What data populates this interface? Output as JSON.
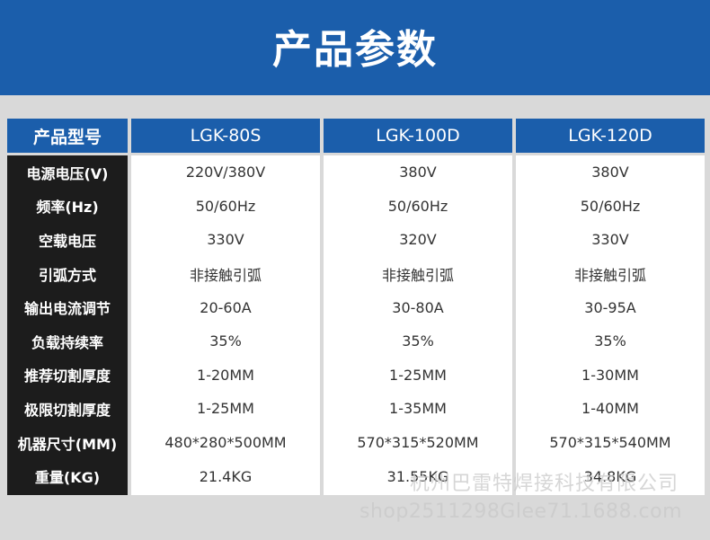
{
  "banner": {
    "title": "产品参数"
  },
  "table": {
    "header": [
      "产品型号",
      "LGK-80S",
      "LGK-100D",
      "LGK-120D"
    ],
    "rows": [
      {
        "label": "电源电压(V)",
        "values": [
          "220V/380V",
          "380V",
          "380V"
        ]
      },
      {
        "label": "频率(Hz)",
        "values": [
          "50/60Hz",
          "50/60Hz",
          "50/60Hz"
        ]
      },
      {
        "label": "空载电压",
        "values": [
          "330V",
          "320V",
          "330V"
        ]
      },
      {
        "label": "引弧方式",
        "values": [
          "非接触引弧",
          "非接触引弧",
          "非接触引弧"
        ]
      },
      {
        "label": "输出电流调节",
        "values": [
          "20-60A",
          "30-80A",
          "30-95A"
        ]
      },
      {
        "label": "负载持续率",
        "values": [
          "35%",
          "35%",
          "35%"
        ]
      },
      {
        "label": "推荐切割厚度",
        "values": [
          "1-20MM",
          "1-25MM",
          "1-30MM"
        ]
      },
      {
        "label": "极限切割厚度",
        "values": [
          "1-25MM",
          "1-35MM",
          "1-40MM"
        ]
      },
      {
        "label": "机器尺寸(MM)",
        "values": [
          "480*280*500MM",
          "570*315*520MM",
          "570*315*540MM"
        ]
      },
      {
        "label": "重量(KG)",
        "values": [
          "21.4KG",
          "31.55KG",
          "34.8KG"
        ]
      }
    ]
  },
  "watermark": {
    "company": "杭州巴雷特焊接科技有限公司",
    "shop": "shop2511298Glee71.1688.com"
  },
  "colors": {
    "accent": "#1b5eab",
    "label_bg": "#1c1c1c",
    "page_bg": "#d9d9d9"
  }
}
